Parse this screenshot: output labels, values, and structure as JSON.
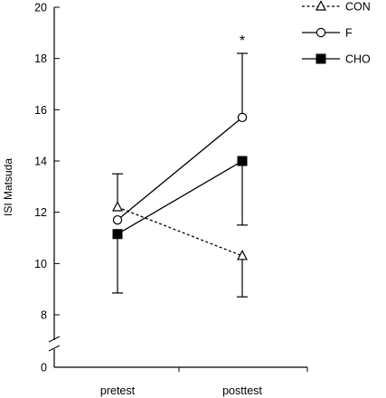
{
  "chart_data": {
    "type": "line",
    "title": "",
    "xlabel": "",
    "ylabel": "ISI Matsuda",
    "categories": [
      "pretest",
      "posttest"
    ],
    "yticks": [
      0,
      8,
      10,
      12,
      14,
      16,
      18,
      20
    ],
    "ylim": [
      8,
      20
    ],
    "y_axis_break": true,
    "grid": false,
    "legend_position": "top-right",
    "annotations": [
      {
        "text": "*",
        "category": "posttest"
      }
    ],
    "series": [
      {
        "name": "CON",
        "marker": "triangle-open",
        "line_style": "dashed",
        "color": "#000000",
        "values": [
          12.2,
          10.3
        ],
        "error_high": [
          13.5,
          null
        ],
        "error_low": [
          null,
          8.7
        ]
      },
      {
        "name": "F",
        "marker": "circle-open",
        "line_style": "solid",
        "color": "#000000",
        "values": [
          11.7,
          15.7
        ],
        "error_high": [
          null,
          18.2
        ],
        "error_low": [
          null,
          null
        ]
      },
      {
        "name": "CHO",
        "marker": "square-filled",
        "line_style": "solid",
        "color": "#000000",
        "values": [
          11.15,
          14.0
        ],
        "error_high": [
          null,
          null
        ],
        "error_low": [
          8.85,
          11.5
        ]
      }
    ]
  }
}
